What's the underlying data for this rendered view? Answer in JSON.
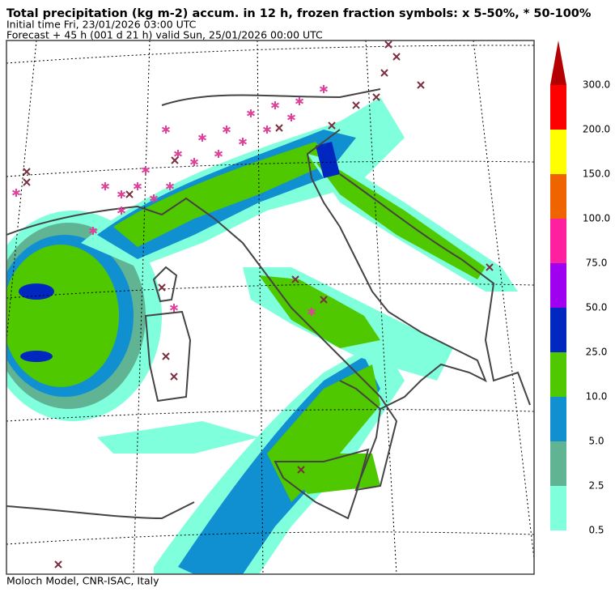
{
  "header": {
    "title": "Total precipitation (kg m-2) accum. in 12 h, frozen fraction symbols: x 5-50%, * 50-100%",
    "initial_time": "Initial time  Fri, 23/01/2026  03:00 UTC",
    "forecast": "Forecast  +  45 h  (001 d 21 h)  valid Sun, 25/01/2026 00:00 UTC"
  },
  "legend": {
    "bins": [
      {
        "label": "0.5",
        "color": "#80ffdc"
      },
      {
        "label": "2.5",
        "color": "#60b494"
      },
      {
        "label": "5.0",
        "color": "#1090d0"
      },
      {
        "label": "10.0",
        "color": "#50c800"
      },
      {
        "label": "25.0",
        "color": "#0028c0"
      },
      {
        "label": "50.0",
        "color": "#a000f0"
      },
      {
        "label": "75.0",
        "color": "#ff20a0"
      },
      {
        "label": "100.0",
        "color": "#f06400"
      },
      {
        "label": "150.0",
        "color": "#ffff00"
      },
      {
        "label": "200.0",
        "color": "#ff0000"
      },
      {
        "label": "300.0",
        "color": "#b40000"
      }
    ]
  },
  "footer": "Moloch Model, CNR-ISAC, Italy"
}
